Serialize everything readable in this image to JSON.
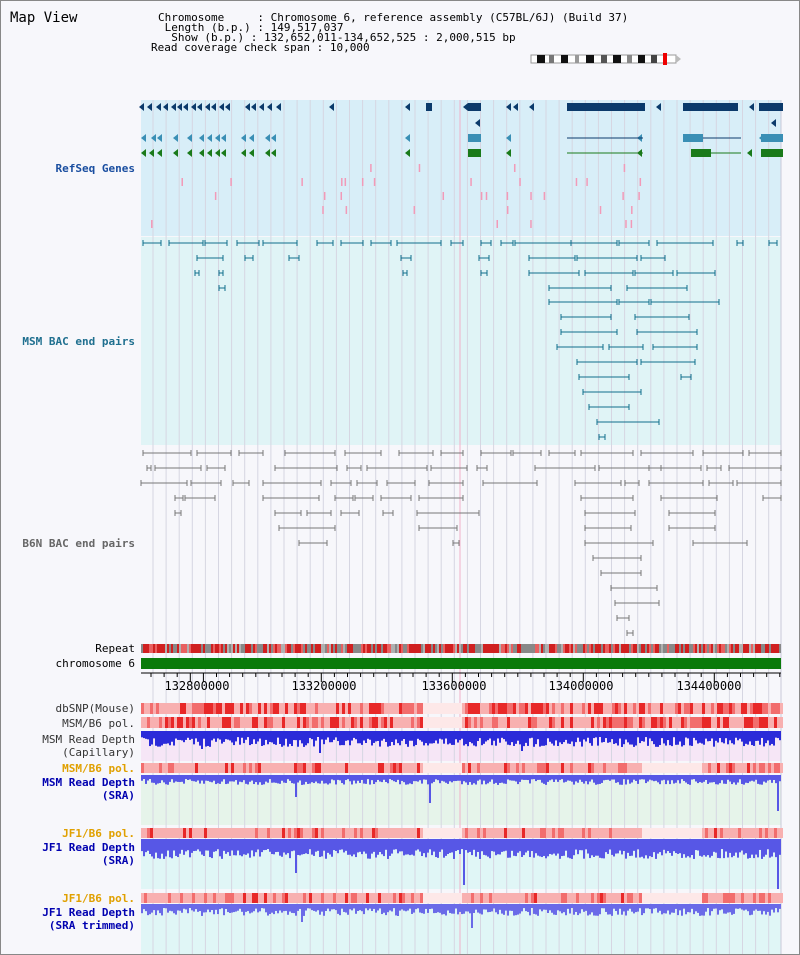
{
  "page": {
    "title": "Map View"
  },
  "info": {
    "chromosome_key": "Chromosome     ",
    "chromosome_val": "Chromosome 6, reference assembly (C57BL/6J) (Build 37)",
    "length_key": " Length (b.p.) ",
    "length_val": "149,517,037",
    "show_key": "  Show (b.p.) ",
    "show_val": "132,652,011-134,652,525 : 2,000,515 bp",
    "coverage_key": "Read coverage check span",
    "coverage_val": "10,000"
  },
  "tracks": {
    "refseq": "RefSeq Genes",
    "msm_bac": "MSM BAC end pairs",
    "b6n_bac": "B6N BAC end pairs",
    "repeat": "Repeat",
    "chromosome": "chromosome 6",
    "dbsnp": "dbSNP(Mouse)",
    "msm_pol": "MSM/B6 pol.",
    "msm_depth_cap_1": "MSM Read Depth",
    "msm_depth_cap_2": "(Capillary)",
    "msm_pol2": "MSM/B6 pol.",
    "msm_depth_sra_1": "MSM Read Depth",
    "msm_depth_sra_2": "(SRA)",
    "jf1_pol": "JF1/B6 pol.",
    "jf1_depth_sra_1": "JF1 Read Depth",
    "jf1_depth_sra_2": "(SRA)",
    "jf1_pol2": "JF1/B6 pol.",
    "jf1_depth_tr_1": "JF1 Read Depth",
    "jf1_depth_tr_2": "(SRA trimmed)"
  },
  "axis": {
    "ticks": [
      "132800000",
      "133200000",
      "133600000",
      "134000000",
      "134400000"
    ]
  },
  "colors": {
    "refseq_bg": "#d8eef8",
    "msm_bg": "#e0f4f6",
    "gene_dark": "#0b3a6b",
    "gene_teal": "#3a8fb5",
    "gene_green": "#1a7a1a",
    "bac_teal": "#0f6e8c",
    "bac_gray": "#777777",
    "chrom_green": "#0a7a0a",
    "depth_blue": "#2b2bd9",
    "pol_red": "#e83030"
  }
}
